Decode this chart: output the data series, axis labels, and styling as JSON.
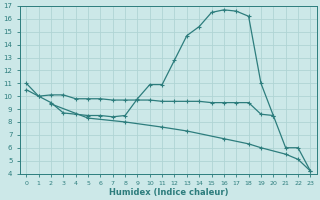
{
  "xlabel": "Humidex (Indice chaleur)",
  "bg_color": "#cce8e8",
  "line_color": "#2d7d7d",
  "grid_color": "#b0d4d4",
  "xlim": [
    -0.5,
    23.5
  ],
  "ylim": [
    4,
    17
  ],
  "yticks": [
    4,
    5,
    6,
    7,
    8,
    9,
    10,
    11,
    12,
    13,
    14,
    15,
    16,
    17
  ],
  "xticks": [
    0,
    1,
    2,
    3,
    4,
    5,
    6,
    7,
    8,
    9,
    10,
    11,
    12,
    13,
    14,
    15,
    16,
    17,
    18,
    19,
    20,
    21,
    22,
    23
  ],
  "line1_x": [
    0,
    1,
    2,
    3,
    4,
    5,
    6,
    7,
    8,
    9,
    10,
    11,
    12,
    13,
    14,
    15,
    16,
    17,
    18,
    19,
    20,
    21,
    22,
    23
  ],
  "line1_y": [
    11.0,
    10.0,
    9.5,
    8.7,
    8.6,
    8.5,
    8.5,
    8.4,
    8.5,
    9.8,
    10.9,
    10.9,
    12.8,
    14.7,
    15.4,
    16.5,
    16.7,
    16.6,
    16.2,
    11.0,
    8.5,
    6.0,
    6.0,
    4.2
  ],
  "line2_x": [
    0,
    1,
    2,
    3,
    4,
    5,
    6,
    7,
    8,
    9,
    10,
    11,
    12,
    13,
    14,
    15,
    16,
    17,
    18,
    19,
    20
  ],
  "line2_y": [
    10.5,
    10.0,
    10.1,
    10.1,
    9.8,
    9.8,
    9.8,
    9.7,
    9.7,
    9.7,
    9.7,
    9.6,
    9.6,
    9.6,
    9.6,
    9.5,
    9.5,
    9.5,
    9.5,
    8.6,
    8.5
  ],
  "line3_x": [
    2,
    5,
    8,
    11,
    13,
    16,
    18,
    19,
    21,
    22,
    23
  ],
  "line3_y": [
    9.4,
    8.3,
    8.0,
    7.6,
    7.3,
    6.7,
    6.3,
    6.0,
    5.5,
    5.1,
    4.2
  ]
}
